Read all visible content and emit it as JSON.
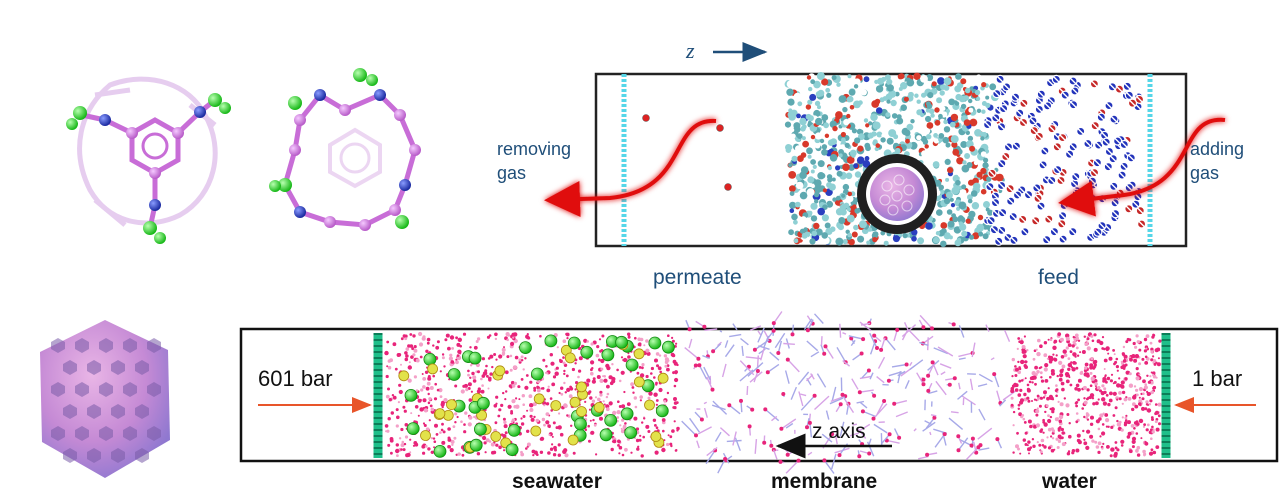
{
  "top_panel": {
    "z_label": "z",
    "removing_gas": "removing gas",
    "adding_gas": "adding gas",
    "permeate": "permeate",
    "feed": "feed"
  },
  "bottom_panel": {
    "left_pressure": "601 bar",
    "right_pressure": "1 bar",
    "z_axis": "z axis",
    "seawater": "seawater",
    "membrane": "membrane",
    "water": "water"
  },
  "colors": {
    "text_blue": "#1f4e79",
    "arrow_red": "#dd1111",
    "arrow_orange": "#e8552a",
    "wall_cyan": "#55d6e8",
    "wall_green": "#1fbf8a",
    "molecule_magenta": "#c86dd7",
    "molecule_green": "#2ee02e",
    "molecule_blue": "#2233bb"
  }
}
